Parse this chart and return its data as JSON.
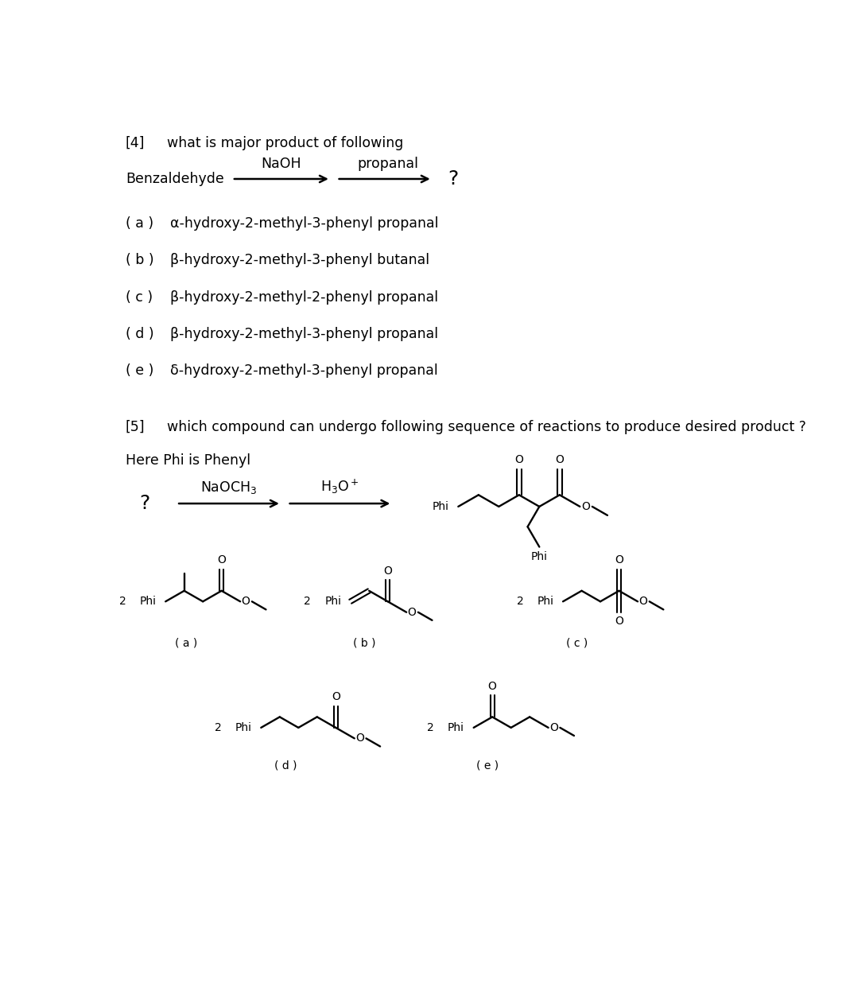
{
  "bg_color": "#ffffff",
  "q4_header_num": "[4]",
  "q4_header_text": "what is major product of following",
  "q4_reactant": "Benzaldehyde",
  "q4_reagent1": "NaOH",
  "q4_reagent2": "propanal",
  "q4_product": "?",
  "q4_options": [
    [
      "( a )",
      "α-hydroxy-2-methyl-3-phenyl propanal"
    ],
    [
      "( b )",
      "β-hydroxy-2-methyl-3-phenyl butanal"
    ],
    [
      "( c )",
      "β-hydroxy-2-methyl-2-phenyl propanal"
    ],
    [
      "( d )",
      "β-hydroxy-2-methyl-3-phenyl propanal"
    ],
    [
      "( e )",
      "δ-hydroxy-2-methyl-3-phenyl propanal"
    ]
  ],
  "q5_header_num": "[5]",
  "q5_header_text": "which compound can undergo following sequence of reactions to produce desired product ?",
  "q5_note": "Here Phi is Phenyl",
  "fig_width": 10.64,
  "fig_height": 12.46,
  "dpi": 100
}
